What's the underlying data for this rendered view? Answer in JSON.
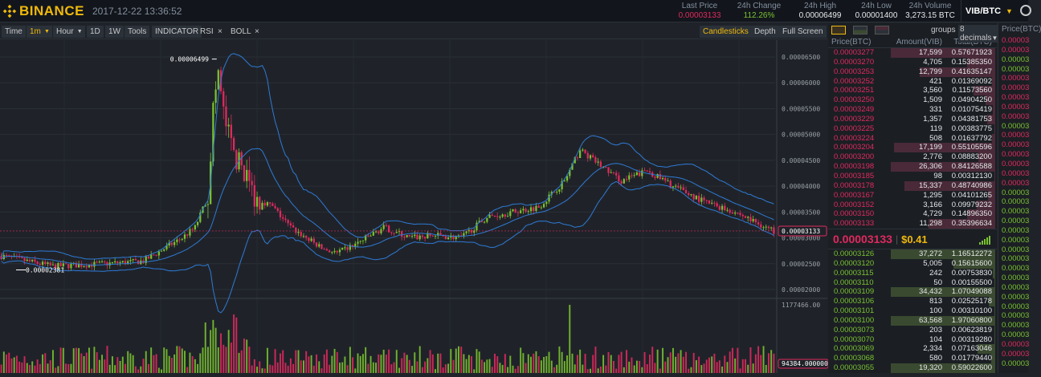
{
  "header": {
    "brand": "BINANCE",
    "datetime": "2017-12-22 13:36:52",
    "stats": [
      {
        "label": "Last Price",
        "value": "0.00003133",
        "color": "#e0295e"
      },
      {
        "label": "24h Change",
        "value": "112.26%",
        "color": "#7ac231"
      },
      {
        "label": "24h High",
        "value": "0.00006499",
        "color": "#e6e8ea"
      },
      {
        "label": "24h Low",
        "value": "0.00001400",
        "color": "#e6e8ea"
      },
      {
        "label": "24h Volume",
        "value": "3,273.15 BTC",
        "color": "#e6e8ea"
      }
    ],
    "pair": "VIB/BTC",
    "icons": [
      "binance-logo-icon",
      "chevron-down-icon"
    ]
  },
  "toolbar": {
    "time": "Time",
    "interval": "1m",
    "hour": "Hour",
    "d1": "1D",
    "w1": "1W",
    "tools": "Tools",
    "indicator": "INDICATOR",
    "rsi": "RSI",
    "rsi_close": "×",
    "boll": "BOLL",
    "boll_close": "×",
    "candlesticks": "Candlesticks",
    "depth": "Depth",
    "fullscreen": "Full Screen"
  },
  "chart": {
    "price_ticks": [
      "0.00006500",
      "0.00006000",
      "0.00005500",
      "0.00005000",
      "0.00004500",
      "0.00004000",
      "0.00003500",
      "0.00003000",
      "0.00002500",
      "0.00002000"
    ],
    "last_price_label": "0.00003133",
    "high_label": "0.00006499",
    "low_label": "0.00002381",
    "volume_max_label": "1177466.00",
    "volume_last_label": "94384.000000",
    "up_color": "#7ac231",
    "down_color": "#e0295e",
    "band_color": "#2f7ad6"
  },
  "orderbook": {
    "groups_label": "groups",
    "decimals": "8 decimals",
    "col_price": "Price(BTC)",
    "col_amount": "Amount(VIB)",
    "col_total": "Total(BTC)",
    "asks": [
      {
        "price": "0.00003277",
        "amount": "17,599",
        "total": "0.57671923",
        "depth": 1.0
      },
      {
        "price": "0.00003270",
        "amount": "4,705",
        "total": "0.15385350",
        "depth": 0.27
      },
      {
        "price": "0.00003253",
        "amount": "12,799",
        "total": "0.41635147",
        "depth": 0.72
      },
      {
        "price": "0.00003252",
        "amount": "421",
        "total": "0.01369092",
        "depth": 0.03
      },
      {
        "price": "0.00003251",
        "amount": "3,560",
        "total": "0.11573560",
        "depth": 0.21
      },
      {
        "price": "0.00003250",
        "amount": "1,509",
        "total": "0.04904250",
        "depth": 0.09
      },
      {
        "price": "0.00003249",
        "amount": "331",
        "total": "0.01075419",
        "depth": 0.02
      },
      {
        "price": "0.00003229",
        "amount": "1,357",
        "total": "0.04381753",
        "depth": 0.08
      },
      {
        "price": "0.00003225",
        "amount": "119",
        "total": "0.00383775",
        "depth": 0.01
      },
      {
        "price": "0.00003224",
        "amount": "508",
        "total": "0.01637792",
        "depth": 0.03
      },
      {
        "price": "0.00003204",
        "amount": "17,199",
        "total": "0.55105596",
        "depth": 0.97
      },
      {
        "price": "0.00003200",
        "amount": "2,776",
        "total": "0.08883200",
        "depth": 0.16
      },
      {
        "price": "0.00003198",
        "amount": "26,306",
        "total": "0.84126588",
        "depth": 1.0
      },
      {
        "price": "0.00003185",
        "amount": "98",
        "total": "0.00312130",
        "depth": 0.01
      },
      {
        "price": "0.00003178",
        "amount": "15,337",
        "total": "0.48740986",
        "depth": 0.87
      },
      {
        "price": "0.00003167",
        "amount": "1,295",
        "total": "0.04101265",
        "depth": 0.07
      },
      {
        "price": "0.00003152",
        "amount": "3,166",
        "total": "0.09979232",
        "depth": 0.18
      },
      {
        "price": "0.00003150",
        "amount": "4,729",
        "total": "0.14896350",
        "depth": 0.27
      },
      {
        "price": "0.00003133",
        "amount": "11,298",
        "total": "0.35396634",
        "depth": 0.64
      }
    ],
    "last_price": "0.00003133",
    "last_usd": "$0.41",
    "bids": [
      {
        "price": "0.00003126",
        "amount": "37,272",
        "total": "1.16512272",
        "depth": 1.0
      },
      {
        "price": "0.00003120",
        "amount": "5,005",
        "total": "0.15615600",
        "depth": 0.4
      },
      {
        "price": "0.00003115",
        "amount": "242",
        "total": "0.00753830",
        "depth": 0.02
      },
      {
        "price": "0.00003110",
        "amount": "50",
        "total": "0.00155500",
        "depth": 0.01
      },
      {
        "price": "0.00003109",
        "amount": "34,432",
        "total": "1.07049088",
        "depth": 1.0
      },
      {
        "price": "0.00003106",
        "amount": "813",
        "total": "0.02525178",
        "depth": 0.06
      },
      {
        "price": "0.00003101",
        "amount": "100",
        "total": "0.00310100",
        "depth": 0.01
      },
      {
        "price": "0.00003100",
        "amount": "63,568",
        "total": "1.97060800",
        "depth": 1.0
      },
      {
        "price": "0.00003073",
        "amount": "203",
        "total": "0.00623819",
        "depth": 0.01
      },
      {
        "price": "0.00003070",
        "amount": "104",
        "total": "0.00319280",
        "depth": 0.01
      },
      {
        "price": "0.00003069",
        "amount": "2,334",
        "total": "0.07163046",
        "depth": 0.17
      },
      {
        "price": "0.00003068",
        "amount": "580",
        "total": "0.01779440",
        "depth": 0.04
      },
      {
        "price": "0.00003055",
        "amount": "19,320",
        "total": "0.59022600",
        "depth": 1.0
      }
    ]
  },
  "trades": {
    "header": "Price(BTC)",
    "rows": [
      {
        "v": "0.00003",
        "c": "#e0295e"
      },
      {
        "v": "0.00003",
        "c": "#e0295e"
      },
      {
        "v": "0.00003",
        "c": "#7ac231"
      },
      {
        "v": "0.00003",
        "c": "#7ac231"
      },
      {
        "v": "0.00003",
        "c": "#e0295e"
      },
      {
        "v": "0.00003",
        "c": "#e0295e"
      },
      {
        "v": "0.00003",
        "c": "#e0295e"
      },
      {
        "v": "0.00003",
        "c": "#e0295e"
      },
      {
        "v": "0.00003",
        "c": "#e0295e"
      },
      {
        "v": "0.00003",
        "c": "#7ac231"
      },
      {
        "v": "0.00003",
        "c": "#e0295e"
      },
      {
        "v": "0.00003",
        "c": "#e0295e"
      },
      {
        "v": "0.00003",
        "c": "#e0295e"
      },
      {
        "v": "0.00003",
        "c": "#e0295e"
      },
      {
        "v": "0.00003",
        "c": "#e0295e"
      },
      {
        "v": "0.00003",
        "c": "#e0295e"
      },
      {
        "v": "0.00003",
        "c": "#7ac231"
      },
      {
        "v": "0.00003",
        "c": "#7ac231"
      },
      {
        "v": "0.00003",
        "c": "#7ac231"
      },
      {
        "v": "0.00003",
        "c": "#7ac231"
      },
      {
        "v": "0.00003",
        "c": "#7ac231"
      },
      {
        "v": "0.00003",
        "c": "#7ac231"
      },
      {
        "v": "0.00003",
        "c": "#7ac231"
      },
      {
        "v": "0.00003",
        "c": "#7ac231"
      },
      {
        "v": "0.00003",
        "c": "#7ac231"
      },
      {
        "v": "0.00003",
        "c": "#7ac231"
      },
      {
        "v": "0.00003",
        "c": "#7ac231"
      },
      {
        "v": "0.00003",
        "c": "#7ac231"
      },
      {
        "v": "0.00003",
        "c": "#7ac231"
      },
      {
        "v": "0.00003",
        "c": "#7ac231"
      },
      {
        "v": "0.00003",
        "c": "#7ac231"
      },
      {
        "v": "0.00003",
        "c": "#7ac231"
      },
      {
        "v": "0.00003",
        "c": "#e0295e"
      },
      {
        "v": "0.00003",
        "c": "#e0295e"
      },
      {
        "v": "0.00003",
        "c": "#7ac231"
      }
    ]
  }
}
